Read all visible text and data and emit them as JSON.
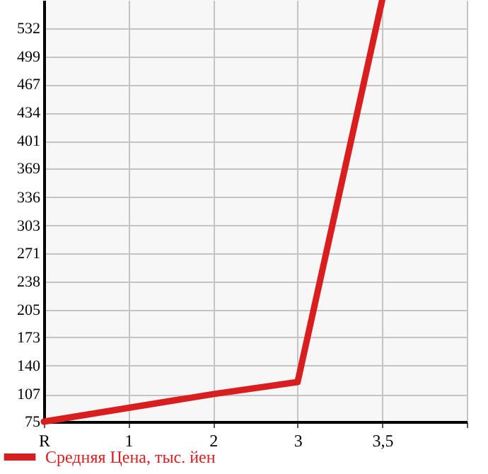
{
  "chart_data": {
    "type": "line",
    "categories": [
      "R",
      "1",
      "2",
      "3",
      "3,5",
      null
    ],
    "series": [
      {
        "name": "Средняя Цена, тыс. йен",
        "color": "#d81e1e",
        "values": [
          75,
          91,
          107,
          121,
          565,
          null
        ]
      }
    ],
    "ylim": [
      75,
      565
    ],
    "yticks": [
      75,
      107,
      140,
      173,
      205,
      238,
      271,
      303,
      336,
      369,
      401,
      434,
      467,
      499,
      532
    ],
    "grid": true,
    "legend": "bottom",
    "marker": "none",
    "line_style": "solid"
  }
}
